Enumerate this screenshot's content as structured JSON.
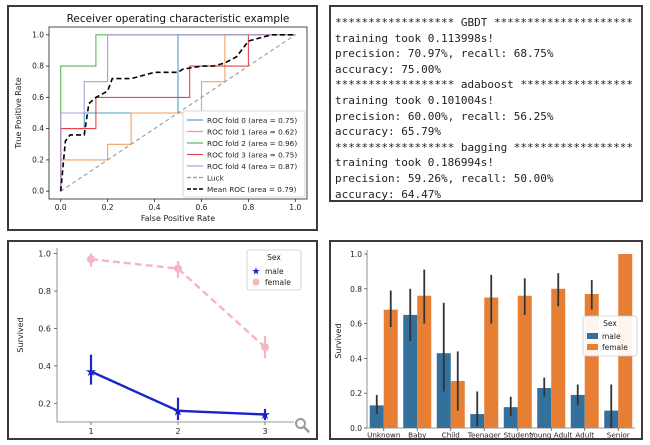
{
  "roc_panel": {
    "title": "Receiver operating characteristic example",
    "xlabel": "False Positive Rate",
    "ylabel": "True Positive Rate",
    "ticks": [
      "0.0",
      "0.2",
      "0.4",
      "0.6",
      "0.8",
      "1.0"
    ]
  },
  "log_panel": {
    "lines": [
      "****************** GBDT *********************",
      "training took 0.113998s!",
      "precision: 70.97%, recall: 68.75%",
      "accuracy: 75.00%",
      "****************** adaboost *****************",
      "training took 0.101004s!",
      "precision: 60.00%, recall: 56.25%",
      "accuracy: 65.79%",
      "****************** bagging ******************",
      "training took 0.186994s!",
      "precision: 59.26%, recall: 50.00%",
      "accuracy: 64.47%"
    ]
  },
  "colors": {
    "fold0": "#4c9bd0",
    "fold1": "#f5a25a",
    "fold2": "#5ab85a",
    "fold3": "#e0474c",
    "fold4": "#b19cd9",
    "luck": "#999999",
    "mean": "#000000",
    "male_line": "#1a24c8",
    "female_line": "#f5b6c4",
    "bar_male": "#33709c",
    "bar_female": "#e67f34",
    "err": "#333333"
  },
  "chart_data": [
    {
      "type": "line",
      "title": "Receiver operating characteristic example",
      "xlabel": "False Positive Rate",
      "ylabel": "True Positive Rate",
      "xlim": [
        0,
        1
      ],
      "ylim": [
        0,
        1
      ],
      "legend_position": "bottom-right",
      "series": [
        {
          "name": "ROC fold 0 (area = 0.75)",
          "color_key": "fold0",
          "style": "solid",
          "x": [
            0,
            0,
            0.1,
            0.1,
            0.2,
            0.2,
            0.5,
            0.5,
            0.5,
            1.0
          ],
          "y": [
            0,
            0.4,
            0.4,
            0.5,
            0.5,
            0.5,
            0.5,
            0.6,
            1.0,
            1.0
          ]
        },
        {
          "name": "ROC fold 1 (area = 0.62)",
          "color_key": "fold1",
          "style": "solid",
          "x": [
            0,
            0,
            0.2,
            0.2,
            0.3,
            0.3,
            0.6,
            0.6,
            0.7,
            0.7,
            1.0
          ],
          "y": [
            0,
            0.2,
            0.2,
            0.3,
            0.3,
            0.5,
            0.5,
            0.7,
            0.7,
            1.0,
            1.0
          ]
        },
        {
          "name": "ROC fold 2 (area = 0.96)",
          "color_key": "fold2",
          "style": "solid",
          "x": [
            0,
            0,
            0.15,
            0.15,
            1.0
          ],
          "y": [
            0,
            0.8,
            0.8,
            1.0,
            1.0
          ]
        },
        {
          "name": "ROC fold 3 (area = 0.75)",
          "color_key": "fold3",
          "style": "solid",
          "x": [
            0,
            0,
            0.15,
            0.15,
            0.3,
            0.3,
            0.55,
            0.55,
            0.8,
            0.8,
            1.0
          ],
          "y": [
            0,
            0.4,
            0.4,
            0.6,
            0.6,
            0.6,
            0.6,
            0.8,
            0.8,
            1.0,
            1.0
          ]
        },
        {
          "name": "ROC fold 4 (area = 0.87)",
          "color_key": "fold4",
          "style": "solid",
          "x": [
            0,
            0,
            0.1,
            0.1,
            0.2,
            0.2,
            1.0
          ],
          "y": [
            0,
            0.5,
            0.5,
            0.7,
            0.7,
            1.0,
            1.0
          ]
        },
        {
          "name": "Luck",
          "color_key": "luck",
          "style": "dashed",
          "x": [
            0,
            1
          ],
          "y": [
            0,
            1
          ]
        },
        {
          "name": "Mean ROC (area = 0.79)",
          "color_key": "mean",
          "style": "dashed",
          "x": [
            0,
            0.02,
            0.04,
            0.05,
            0.1,
            0.12,
            0.15,
            0.2,
            0.22,
            0.3,
            0.35,
            0.4,
            0.45,
            0.5,
            0.52,
            0.6,
            0.65,
            0.7,
            0.75,
            0.8,
            0.85,
            0.9,
            1.0
          ],
          "y": [
            0,
            0.32,
            0.36,
            0.36,
            0.36,
            0.56,
            0.6,
            0.64,
            0.72,
            0.72,
            0.74,
            0.76,
            0.76,
            0.76,
            0.78,
            0.8,
            0.8,
            0.82,
            0.86,
            0.96,
            0.98,
            1.0,
            1.0
          ]
        }
      ]
    },
    {
      "type": "line",
      "xlabel": "",
      "ylabel": "Survived",
      "categories": [
        "1",
        "2",
        "3"
      ],
      "ylim": [
        0.1,
        1.03
      ],
      "yticks": [
        "0.2",
        "0.4",
        "0.6",
        "0.8",
        "1.0"
      ],
      "legend_title": "Sex",
      "legend_position": "top-right",
      "series": [
        {
          "name": "male",
          "color_key": "male_line",
          "style": "solid",
          "marker": "star",
          "values": [
            0.37,
            0.16,
            0.14
          ],
          "err_low": [
            0.3,
            0.11,
            0.11
          ],
          "err_high": [
            0.46,
            0.23,
            0.17
          ]
        },
        {
          "name": "female",
          "color_key": "female_line",
          "style": "dashed",
          "marker": "circle",
          "values": [
            0.97,
            0.92,
            0.5
          ],
          "err_low": [
            0.93,
            0.87,
            0.44
          ],
          "err_high": [
            1.0,
            0.96,
            0.56
          ]
        }
      ]
    },
    {
      "type": "bar",
      "xlabel": "",
      "ylabel": "Survived",
      "categories": [
        "Unknown",
        "Baby",
        "Child",
        "Teenager",
        "Student",
        "Young Adult",
        "Adult",
        "Senior"
      ],
      "ylim": [
        0,
        1.0
      ],
      "yticks": [
        "0.0",
        "0.2",
        "0.4",
        "0.6",
        "0.8",
        "1.0"
      ],
      "legend_title": "Sex",
      "legend_position": "center-right",
      "series": [
        {
          "name": "male",
          "color_key": "bar_male",
          "values": [
            0.13,
            0.65,
            0.43,
            0.08,
            0.12,
            0.23,
            0.19,
            0.1
          ],
          "err_low": [
            0.08,
            0.5,
            0.21,
            0.01,
            0.07,
            0.18,
            0.13,
            0.0
          ],
          "err_high": [
            0.19,
            0.8,
            0.72,
            0.21,
            0.18,
            0.29,
            0.25,
            0.25
          ]
        },
        {
          "name": "female",
          "color_key": "bar_female",
          "values": [
            0.68,
            0.76,
            0.27,
            0.75,
            0.76,
            0.8,
            0.77,
            1.0
          ],
          "err_low": [
            0.58,
            0.6,
            0.1,
            0.6,
            0.65,
            0.7,
            0.68,
            1.0
          ],
          "err_high": [
            0.79,
            0.91,
            0.44,
            0.88,
            0.86,
            0.89,
            0.85,
            1.0
          ]
        }
      ]
    }
  ]
}
